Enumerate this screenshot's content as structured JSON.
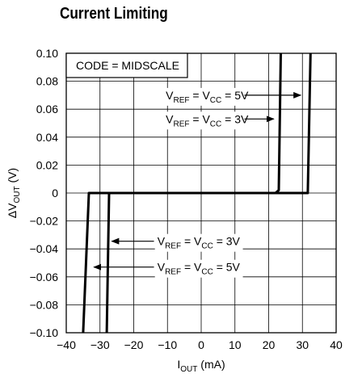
{
  "chart_data": {
    "type": "line",
    "title": "Current Limiting",
    "xlabel": {
      "main": "I",
      "sub": "OUT",
      "unit": " (mA)"
    },
    "ylabel": {
      "main": "ΔV",
      "sub": "OUT",
      "unit": " (V)"
    },
    "xlim": [
      -40,
      40
    ],
    "ylim": [
      -0.1,
      0.1
    ],
    "grid": true,
    "x_ticks": [
      "−40",
      "−30",
      "−20",
      "−10",
      "0",
      "10",
      "20",
      "30",
      "40"
    ],
    "y_ticks": [
      "−0.10",
      "−0.08",
      "−0.06",
      "−0.04",
      "−0.02",
      "0",
      "0.02",
      "0.04",
      "0.06",
      "0.08",
      "0.10"
    ],
    "code_label": "CODE = MIDSCALE",
    "series": [
      {
        "label": {
          "a": "V",
          "a_sub": "REF",
          "b": " = V",
          "b_sub": "CC",
          "c": " = 5V"
        },
        "points": [
          [
            -35.0,
            -0.1
          ],
          [
            -33.3,
            0.0
          ],
          [
            22.0,
            0.0
          ],
          [
            23.0,
            0.002
          ],
          [
            23.6,
            0.1
          ]
        ]
      },
      {
        "label": {
          "a": "V",
          "a_sub": "REF",
          "b": " = V",
          "b_sub": "CC",
          "c": " = 3V"
        },
        "points": [
          [
            -28.0,
            -0.1
          ],
          [
            -27.3,
            0.0
          ],
          [
            31.6,
            0.0
          ],
          [
            32.4,
            0.1
          ]
        ]
      }
    ],
    "annotations": [
      {
        "series": 0,
        "side": "upper",
        "text_pos": [
          -10.5,
          0.07
        ],
        "arrow_from": [
          12.8,
          0.07
        ],
        "arrow_to": [
          29.5,
          0.07
        ]
      },
      {
        "series": 1,
        "side": "upper",
        "text_pos": [
          -10.5,
          0.053
        ],
        "arrow_from": [
          12.8,
          0.053
        ],
        "arrow_to": [
          21.5,
          0.053
        ]
      },
      {
        "series": 1,
        "side": "lower",
        "text_pos": [
          -13.0,
          -0.0345
        ],
        "arrow_from": [
          -14.0,
          -0.0345
        ],
        "arrow_to": [
          -26.5,
          -0.0345
        ]
      },
      {
        "series": 0,
        "side": "lower",
        "text_pos": [
          -13.0,
          -0.053
        ],
        "arrow_from": [
          -14.0,
          -0.053
        ],
        "arrow_to": [
          -31.8,
          -0.053
        ]
      }
    ]
  }
}
